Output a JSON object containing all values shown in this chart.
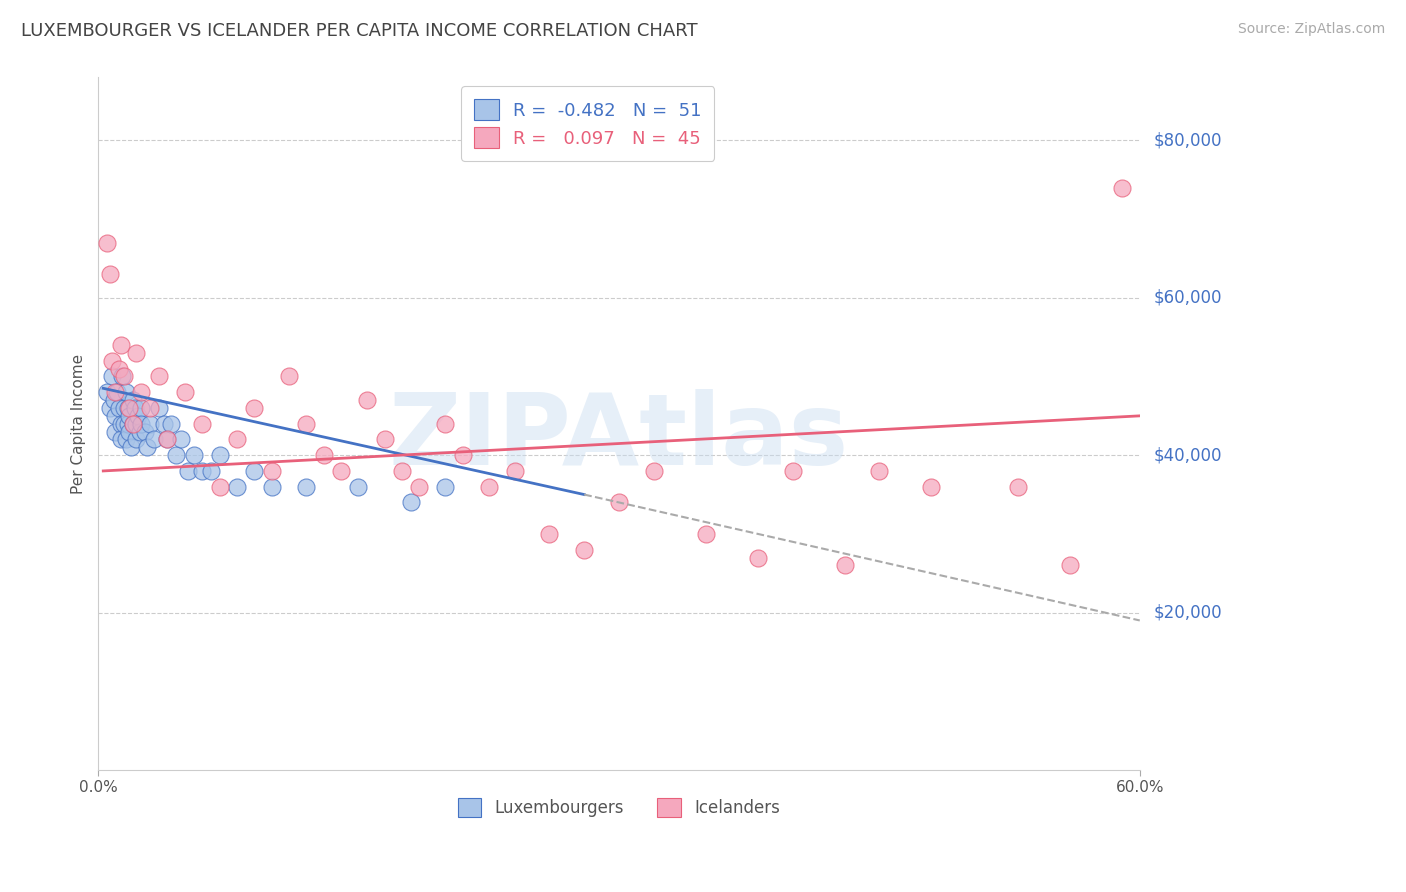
{
  "title": "LUXEMBOURGER VS ICELANDER PER CAPITA INCOME CORRELATION CHART",
  "source": "Source: ZipAtlas.com",
  "ylabel": "Per Capita Income",
  "xlim": [
    0.0,
    0.6
  ],
  "ylim": [
    0,
    88000
  ],
  "yticks": [
    20000,
    40000,
    60000,
    80000
  ],
  "ytick_labels": [
    "$20,000",
    "$40,000",
    "$60,000",
    "$80,000"
  ],
  "R_lux": -0.482,
  "N_lux": 51,
  "R_ice": 0.097,
  "N_ice": 45,
  "color_lux": "#a8c4e8",
  "color_ice": "#f5a8be",
  "color_line_lux": "#4472c4",
  "color_line_ice": "#e8607a",
  "color_axis_labels": "#4472c4",
  "watermark": "ZIPAtlas",
  "lux_x": [
    0.005,
    0.007,
    0.008,
    0.009,
    0.01,
    0.01,
    0.011,
    0.012,
    0.013,
    0.013,
    0.014,
    0.015,
    0.015,
    0.016,
    0.016,
    0.017,
    0.017,
    0.018,
    0.018,
    0.019,
    0.02,
    0.02,
    0.021,
    0.022,
    0.022,
    0.023,
    0.024,
    0.025,
    0.025,
    0.027,
    0.028,
    0.03,
    0.032,
    0.035,
    0.038,
    0.04,
    0.042,
    0.045,
    0.048,
    0.052,
    0.055,
    0.06,
    0.065,
    0.07,
    0.08,
    0.09,
    0.1,
    0.12,
    0.15,
    0.18,
    0.2
  ],
  "lux_y": [
    48000,
    46000,
    50000,
    47000,
    45000,
    43000,
    48000,
    46000,
    44000,
    42000,
    50000,
    46000,
    44000,
    48000,
    42000,
    46000,
    44000,
    43000,
    45000,
    41000,
    47000,
    44000,
    46000,
    44000,
    42000,
    45000,
    43000,
    46000,
    44000,
    43000,
    41000,
    44000,
    42000,
    46000,
    44000,
    42000,
    44000,
    40000,
    42000,
    38000,
    40000,
    38000,
    38000,
    40000,
    36000,
    38000,
    36000,
    36000,
    36000,
    34000,
    36000
  ],
  "ice_x": [
    0.005,
    0.007,
    0.008,
    0.01,
    0.012,
    0.013,
    0.015,
    0.018,
    0.02,
    0.022,
    0.025,
    0.03,
    0.035,
    0.04,
    0.05,
    0.06,
    0.07,
    0.08,
    0.09,
    0.1,
    0.11,
    0.12,
    0.13,
    0.14,
    0.155,
    0.165,
    0.175,
    0.185,
    0.2,
    0.21,
    0.225,
    0.24,
    0.26,
    0.28,
    0.3,
    0.32,
    0.35,
    0.38,
    0.4,
    0.43,
    0.45,
    0.48,
    0.53,
    0.56,
    0.59
  ],
  "ice_y": [
    67000,
    63000,
    52000,
    48000,
    51000,
    54000,
    50000,
    46000,
    44000,
    53000,
    48000,
    46000,
    50000,
    42000,
    48000,
    44000,
    36000,
    42000,
    46000,
    38000,
    50000,
    44000,
    40000,
    38000,
    47000,
    42000,
    38000,
    36000,
    44000,
    40000,
    36000,
    38000,
    30000,
    28000,
    34000,
    38000,
    30000,
    27000,
    38000,
    26000,
    38000,
    36000,
    36000,
    26000,
    74000
  ],
  "line_lux_x0": 0.003,
  "line_lux_y0": 48500,
  "line_lux_x1": 0.28,
  "line_lux_y1": 35000,
  "line_lux_dash_x0": 0.28,
  "line_lux_dash_y0": 35000,
  "line_lux_dash_x1": 0.6,
  "line_lux_dash_y1": 19000,
  "line_ice_x0": 0.003,
  "line_ice_y0": 38000,
  "line_ice_x1": 0.6,
  "line_ice_y1": 45000
}
